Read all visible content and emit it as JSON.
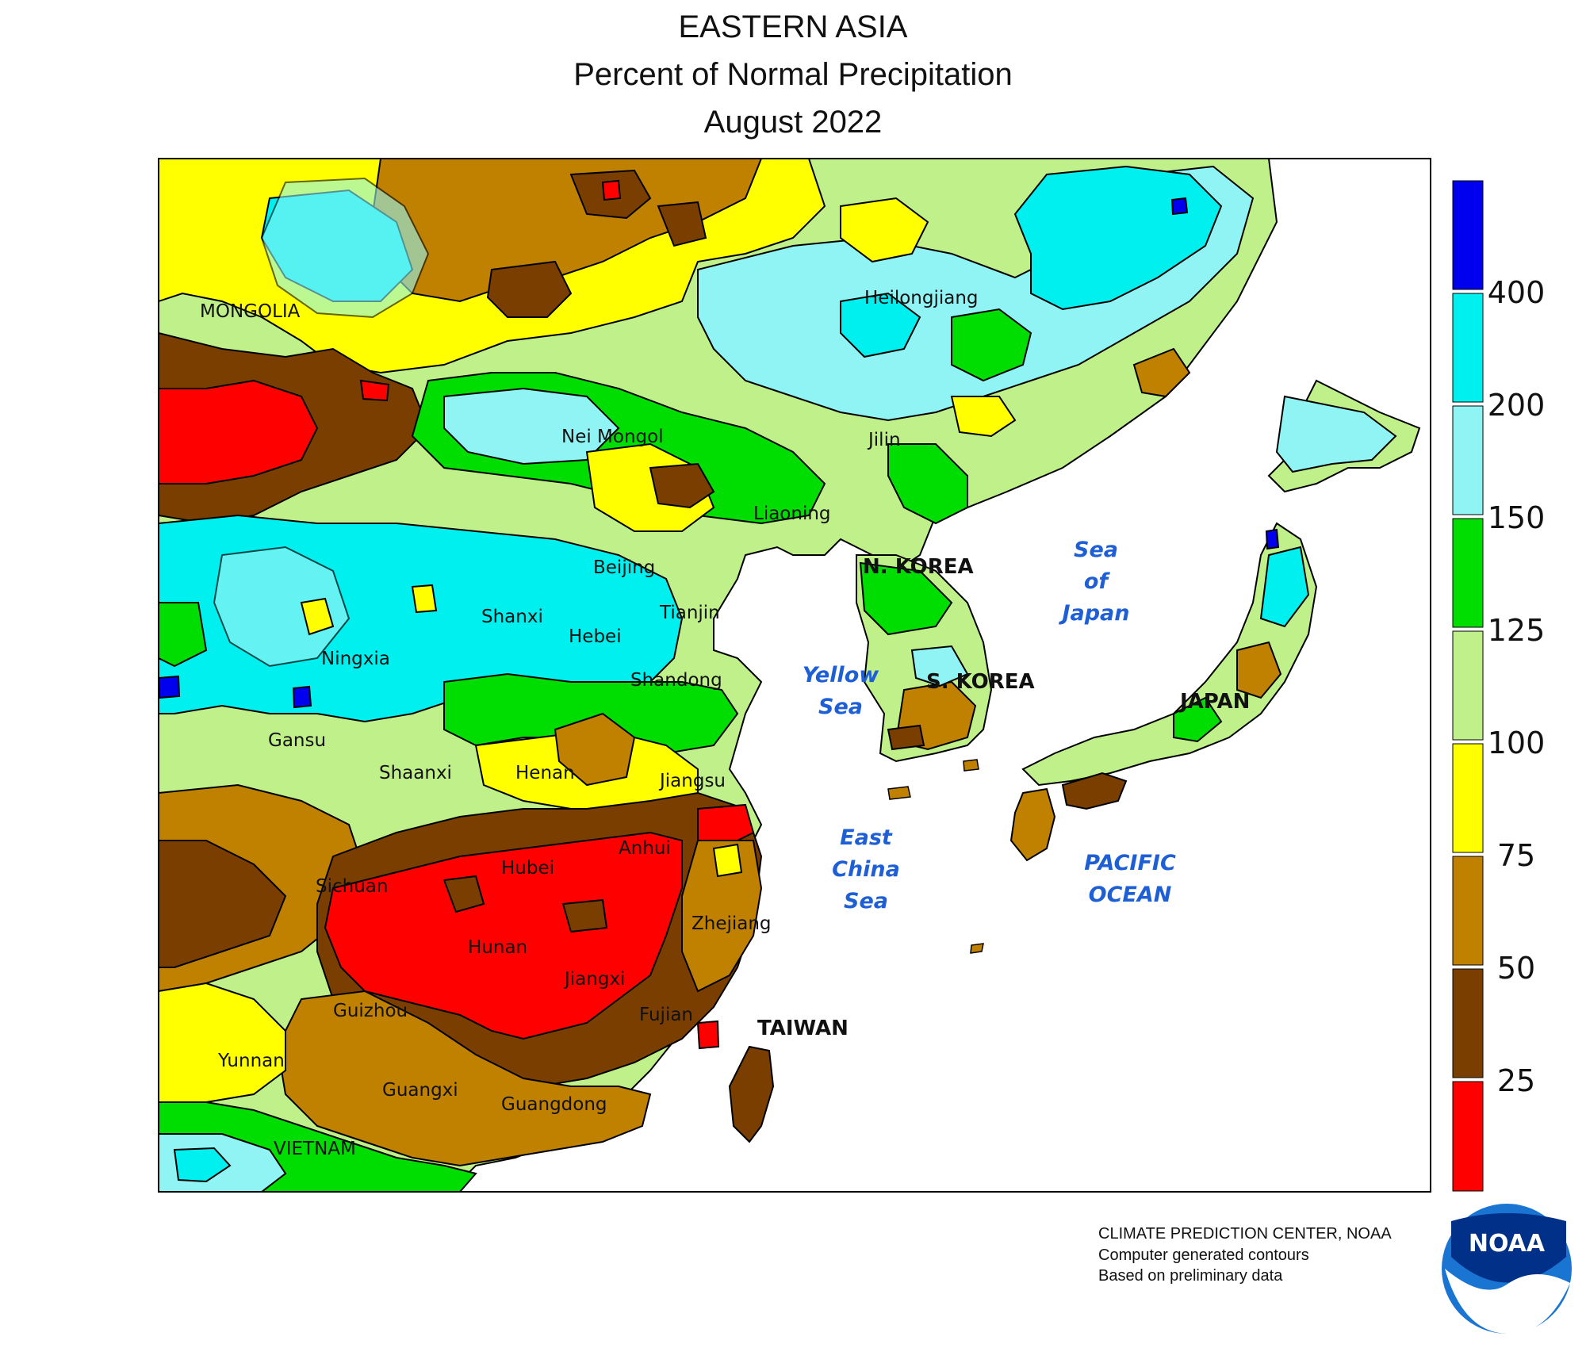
{
  "title": {
    "line1": "EASTERN ASIA",
    "line2": "Percent of Normal Precipitation",
    "line3": "August 2022"
  },
  "map": {
    "province_labels": [
      "MONGOLIA",
      "Heilongjiang",
      "Nei Mongol",
      "Jilin",
      "Liaoning",
      "Beijing",
      "Tianjin",
      "Shanxi",
      "Hebei",
      "Ningxia",
      "Shandong",
      "Gansu",
      "Shaanxi",
      "Henan",
      "Jiangsu",
      "Anhui",
      "Hubei",
      "Sichuan",
      "Hunan",
      "Zhejiang",
      "Jiangxi",
      "Guizhou",
      "Fujian",
      "Yunnan",
      "Guangxi",
      "Guangdong",
      "VIETNAM"
    ],
    "country_labels": [
      "N. KOREA",
      "S. KOREA",
      "JAPAN",
      "TAIWAN"
    ],
    "sea_labels": {
      "sea_of_japan": [
        "Sea",
        "of",
        "Japan"
      ],
      "yellow_sea": [
        "Yellow",
        "Sea"
      ],
      "east_china_sea": [
        "East",
        "China",
        "Sea"
      ],
      "pacific_ocean": [
        "PACIFIC",
        "OCEAN"
      ]
    }
  },
  "legend": {
    "colors": {
      "gt400": "#0000ee",
      "200_400": "#00f0f0",
      "150_200": "#90f4f4",
      "125_150": "#00dd00",
      "100_125": "#c0f08a",
      "75_100": "#ffff00",
      "50_75": "#c08000",
      "25_50": "#7a3f00",
      "lt25": "#ff0000"
    },
    "ticks": [
      "400",
      "200",
      "150",
      "125",
      "100",
      "75",
      "50",
      "25"
    ]
  },
  "credits": {
    "line1": "CLIMATE PREDICTION CENTER, NOAA",
    "line2": "Computer generated contours",
    "line3": "Based on preliminary data"
  },
  "logo": {
    "text": "NOAA"
  }
}
